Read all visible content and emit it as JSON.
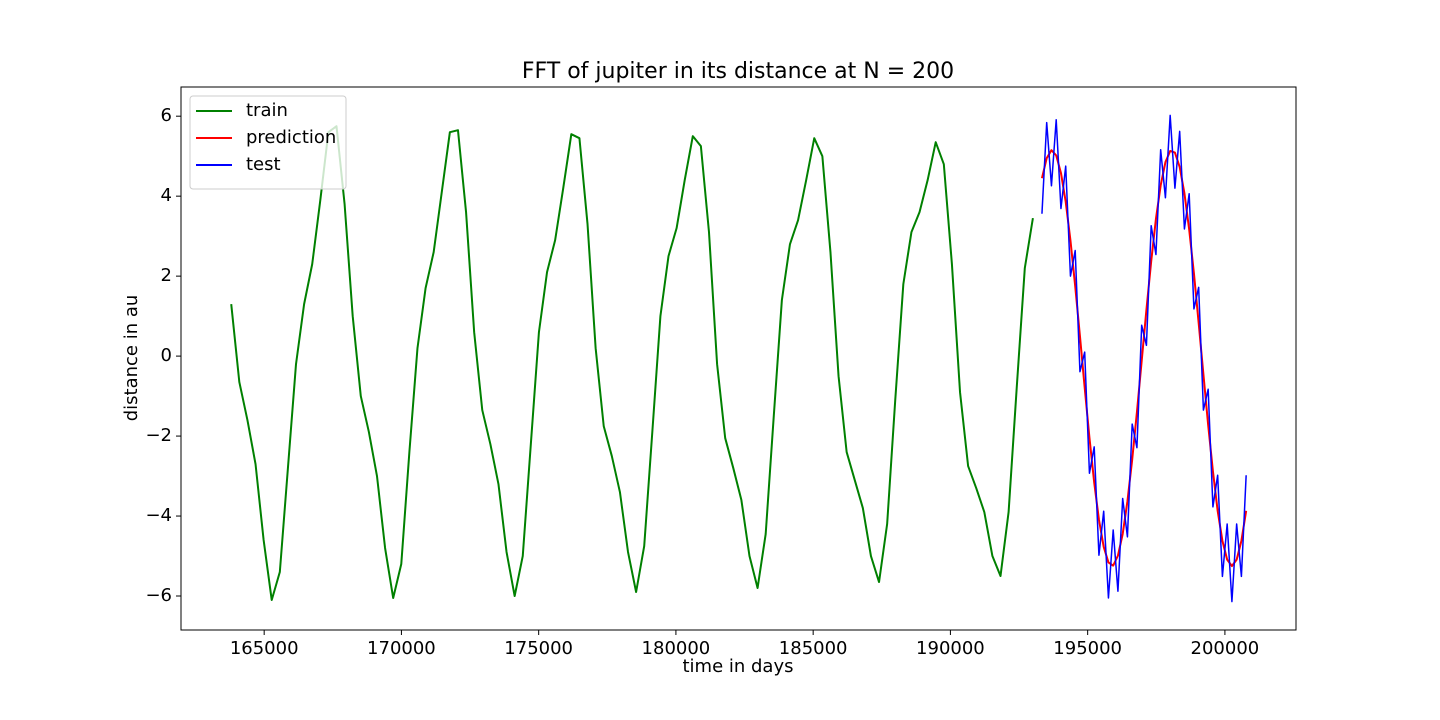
{
  "chart_data": {
    "type": "line",
    "title": "FFT of jupiter in its distance at N = 200",
    "x_label": "time in days",
    "y_label": "distance in au",
    "xlim": [
      161970,
      202590
    ],
    "ylim": [
      -6.85,
      6.73
    ],
    "xticks": [
      165000,
      170000,
      175000,
      180000,
      185000,
      190000,
      195000,
      200000
    ],
    "yticks": [
      {
        "value": -6,
        "label": "−6"
      },
      {
        "value": -4,
        "label": "−4"
      },
      {
        "value": -2,
        "label": "−2"
      },
      0,
      2,
      4,
      6
    ],
    "legend": "upper left",
    "series": [
      {
        "name": "train",
        "color": "#008000",
        "x": [
          163800,
          164095,
          164390,
          164685,
          164980,
          165275,
          165570,
          165865,
          166160,
          166455,
          166750,
          167045,
          167340,
          167635,
          167930,
          168225,
          168520,
          168815,
          169110,
          169405,
          169700,
          169995,
          170290,
          170585,
          170880,
          171175,
          171470,
          171765,
          172060,
          172355,
          172650,
          172945,
          173240,
          173535,
          173830,
          174125,
          174420,
          174715,
          175010,
          175305,
          175600,
          175895,
          176190,
          176485,
          176780,
          177075,
          177370,
          177665,
          177960,
          178255,
          178550,
          178845,
          179140,
          179435,
          179730,
          180025,
          180320,
          180615,
          180910,
          181205,
          181500,
          181795,
          182090,
          182385,
          182680,
          182975,
          183270,
          183565,
          183860,
          184155,
          184450,
          184745,
          185040,
          185335,
          185630,
          185925,
          186220,
          186515,
          186810,
          187105,
          187400,
          187695,
          187990,
          188285,
          188580,
          188875,
          189170,
          189465,
          189760,
          190055,
          190350,
          190645,
          190940,
          191235,
          191530,
          191825,
          192120,
          192415,
          192710,
          193005
        ],
        "values": [
          1.3,
          -0.65,
          -1.6,
          -2.7,
          -4.6,
          -6.1,
          -5.4,
          -2.8,
          -0.2,
          1.3,
          2.3,
          3.9,
          5.6,
          5.75,
          3.8,
          1.0,
          -1.0,
          -1.9,
          -3.0,
          -4.8,
          -6.05,
          -5.2,
          -2.4,
          0.2,
          1.7,
          2.6,
          4.1,
          5.6,
          5.65,
          3.6,
          0.6,
          -1.35,
          -2.2,
          -3.2,
          -4.9,
          -6.0,
          -5.0,
          -2.2,
          0.6,
          2.1,
          2.9,
          4.2,
          5.55,
          5.45,
          3.3,
          0.2,
          -1.75,
          -2.5,
          -3.4,
          -4.9,
          -5.9,
          -4.75,
          -1.9,
          1.0,
          2.5,
          3.2,
          4.4,
          5.5,
          5.25,
          3.1,
          -0.2,
          -2.05,
          -2.8,
          -3.6,
          -5.0,
          -5.8,
          -4.45,
          -1.5,
          1.4,
          2.8,
          3.4,
          4.4,
          5.45,
          5.0,
          2.6,
          -0.5,
          -2.4,
          -3.1,
          -3.8,
          -5.0,
          -5.65,
          -4.2,
          -1.1,
          1.8,
          3.1,
          3.6,
          4.4,
          5.35,
          4.8,
          2.3,
          -0.9,
          -2.75,
          -3.3,
          -3.9,
          -5.0,
          -5.5,
          -3.9,
          -0.8,
          2.2,
          3.45
        ]
      },
      {
        "name": "prediction",
        "color": "#ff0000",
        "x": [
          193335,
          193508,
          193681,
          193854,
          194027,
          194200,
          194373,
          194546,
          194719,
          194892,
          195065,
          195238,
          195411,
          195584,
          195757,
          195930,
          196103,
          196276,
          196449,
          196622,
          196795,
          196968,
          197141,
          197314,
          197487,
          197660,
          197833,
          198006,
          198179,
          198352,
          198525,
          198698,
          198871,
          199044,
          199217,
          199390,
          199563,
          199736,
          199909,
          200082,
          200255,
          200428,
          200601,
          200774
        ],
        "values": [
          4.45,
          4.95,
          5.15,
          5.02,
          4.58,
          3.86,
          2.89,
          1.75,
          0.5,
          -0.79,
          -2.04,
          -3.16,
          -4.09,
          -4.77,
          -5.16,
          -5.24,
          -4.99,
          -4.45,
          -3.63,
          -2.59,
          -1.4,
          -0.12,
          1.16,
          2.37,
          3.43,
          4.27,
          4.85,
          5.13,
          5.09,
          4.73,
          4.07,
          3.17,
          2.07,
          0.83,
          -0.46,
          -1.72,
          -2.88,
          -3.87,
          -4.62,
          -5.09,
          -5.25,
          -5.09,
          -4.62,
          -3.87
        ]
      },
      {
        "name": "test",
        "color": "#0000ff",
        "x": [
          193335,
          193508,
          193681,
          193854,
          194027,
          194200,
          194373,
          194546,
          194719,
          194892,
          195065,
          195238,
          195411,
          195584,
          195757,
          195930,
          196103,
          196276,
          196449,
          196622,
          196795,
          196968,
          197141,
          197314,
          197487,
          197660,
          197833,
          198006,
          198179,
          198352,
          198525,
          198698,
          198871,
          199044,
          199217,
          199390,
          199563,
          199736,
          199909,
          200082,
          200255,
          200428,
          200601,
          200774
        ],
        "values": [
          3.56,
          5.84,
          4.26,
          5.91,
          3.69,
          4.75,
          2.0,
          2.64,
          -0.39,
          0.1,
          -2.93,
          -2.27,
          -4.98,
          -3.88,
          -6.05,
          -4.35,
          -5.88,
          -3.56,
          -4.52,
          -1.7,
          -2.29,
          0.77,
          0.27,
          3.26,
          2.54,
          5.16,
          3.96,
          6.02,
          4.2,
          5.62,
          3.18,
          4.06,
          1.18,
          1.72,
          -1.35,
          -0.83,
          -3.77,
          -2.98,
          -5.51,
          -4.2,
          -6.14,
          -4.2,
          -5.51,
          -2.98
        ]
      }
    ]
  }
}
